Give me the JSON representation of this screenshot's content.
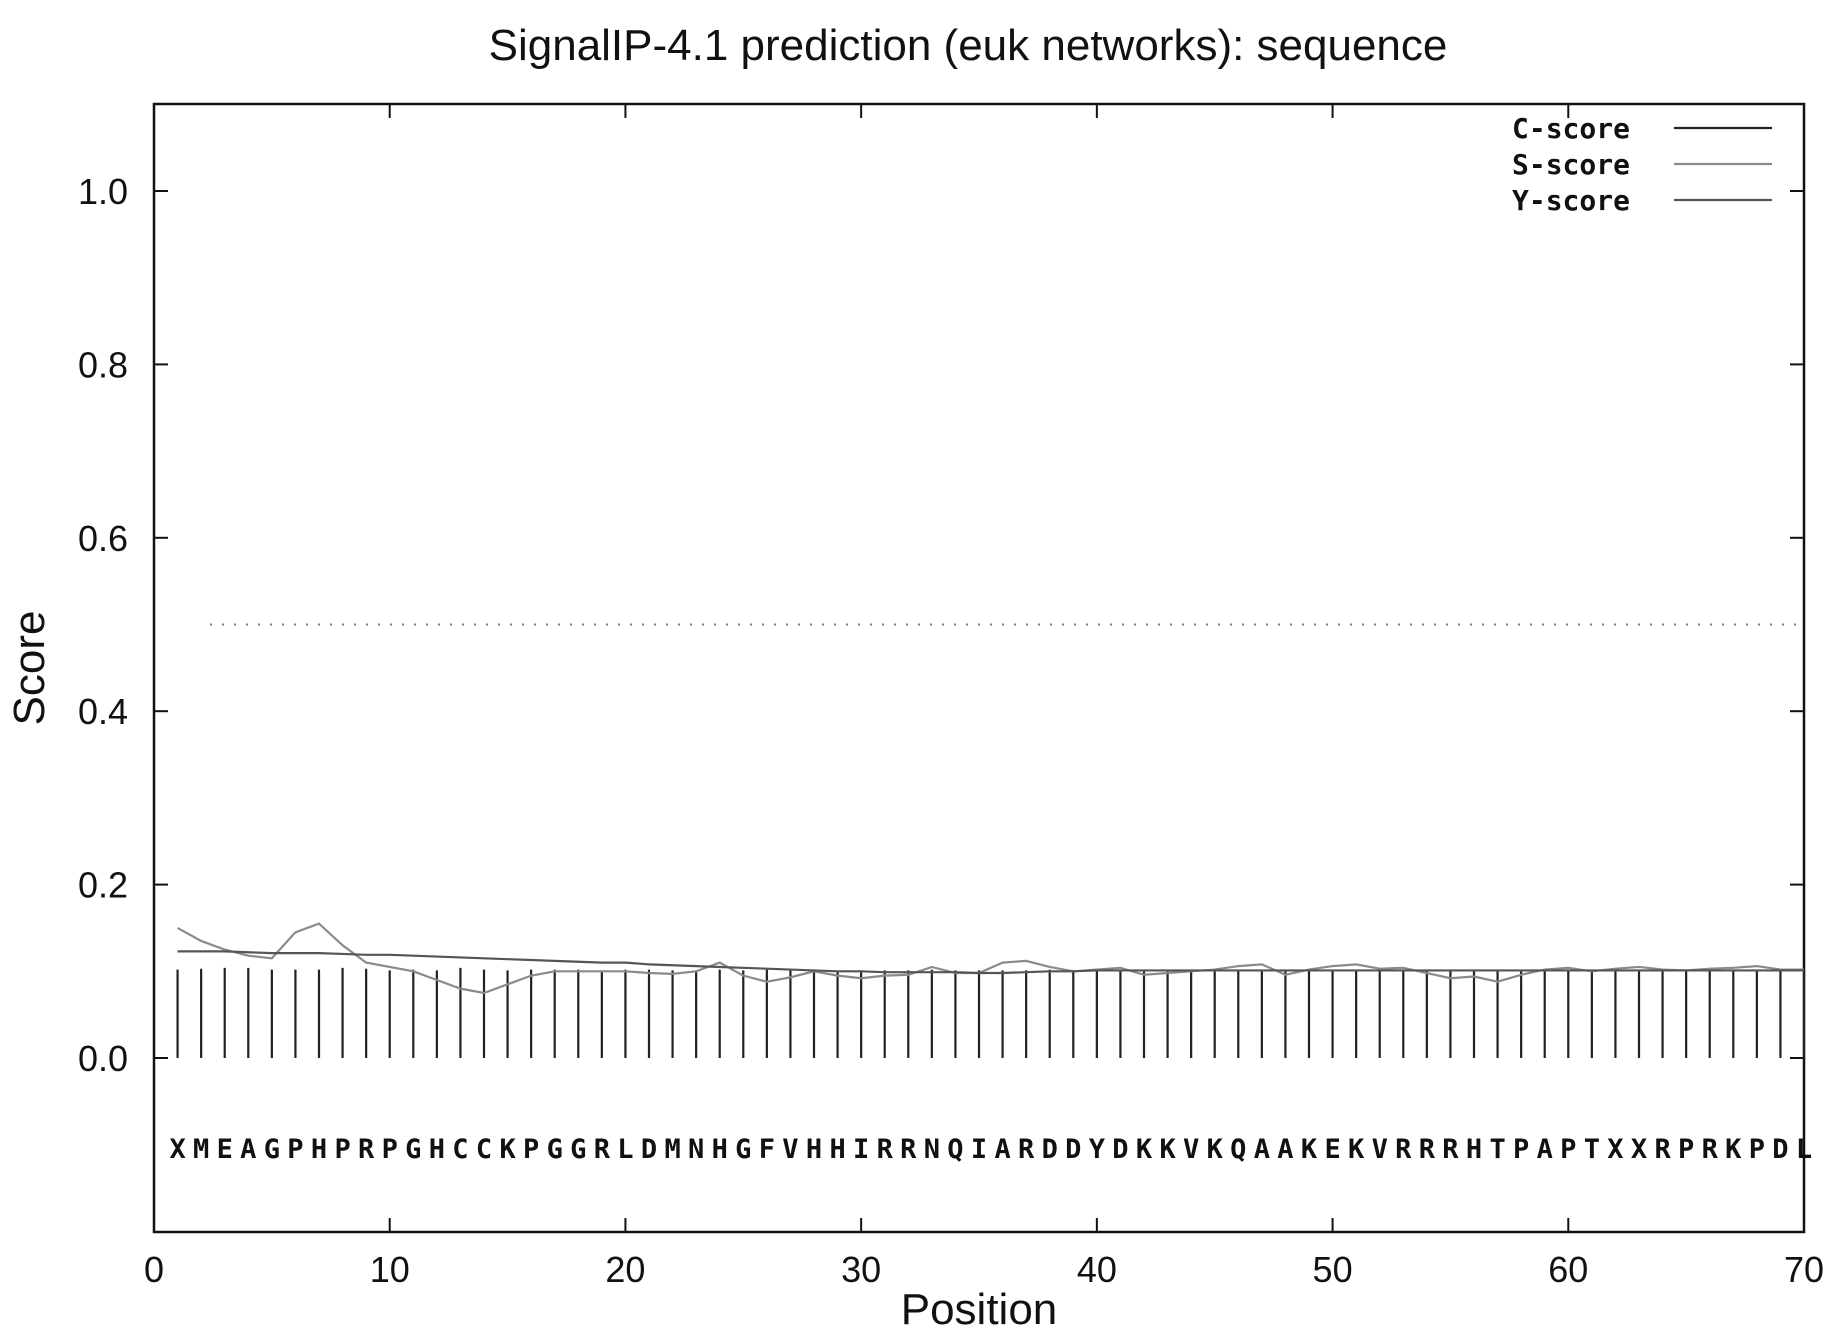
{
  "chart_data": {
    "type": "line",
    "title": "SignalIP-4.1 prediction (euk networks): sequence",
    "xlabel": "Position",
    "ylabel": "Score",
    "xlim": [
      0,
      70
    ],
    "ylim": [
      -0.2,
      1.1
    ],
    "x_ticks": [
      0,
      10,
      20,
      30,
      40,
      50,
      60,
      70
    ],
    "y_ticks": [
      0.0,
      0.2,
      0.4,
      0.6,
      0.8,
      1.0
    ],
    "x_tick_labels": [
      "0",
      "10",
      "20",
      "30",
      "40",
      "50",
      "60",
      "70"
    ],
    "y_tick_labels": [
      "0.0",
      "0.2",
      "0.4",
      "0.6",
      "0.8",
      "1.0"
    ],
    "threshold": 0.5,
    "legend_position": "top-right",
    "sequence": "XMEAGPHPRPGHCCKPGGRLDMNHGFVHHIRRNQIARDDYDKKVKQAAKEKVRRRHTPAPTXXRPRKPDL",
    "series": [
      {
        "name": "C-score",
        "style": "impulses",
        "color": "#222222",
        "values": [
          0.102,
          0.103,
          0.104,
          0.104,
          0.102,
          0.102,
          0.102,
          0.104,
          0.103,
          0.101,
          0.102,
          0.101,
          0.104,
          0.102,
          0.101,
          0.102,
          0.102,
          0.102,
          0.101,
          0.102,
          0.102,
          0.101,
          0.101,
          0.102,
          0.101,
          0.102,
          0.101,
          0.101,
          0.1,
          0.101,
          0.101,
          0.101,
          0.102,
          0.101,
          0.101,
          0.101,
          0.101,
          0.102,
          0.101,
          0.101,
          0.101,
          0.101,
          0.102,
          0.101,
          0.101,
          0.101,
          0.102,
          0.101,
          0.101,
          0.101,
          0.101,
          0.101,
          0.101,
          0.101,
          0.101,
          0.101,
          0.101,
          0.101,
          0.101,
          0.101,
          0.101,
          0.101,
          0.101,
          0.101,
          0.101,
          0.101,
          0.101,
          0.101,
          0.101,
          0.101
        ]
      },
      {
        "name": "S-score",
        "style": "line",
        "color": "#8a8a8a",
        "values": [
          0.15,
          0.135,
          0.125,
          0.118,
          0.115,
          0.145,
          0.155,
          0.13,
          0.11,
          0.105,
          0.1,
          0.09,
          0.08,
          0.075,
          0.085,
          0.095,
          0.1,
          0.1,
          0.1,
          0.1,
          0.098,
          0.097,
          0.1,
          0.11,
          0.095,
          0.088,
          0.093,
          0.1,
          0.095,
          0.092,
          0.095,
          0.096,
          0.105,
          0.098,
          0.098,
          0.11,
          0.112,
          0.105,
          0.1,
          0.102,
          0.104,
          0.096,
          0.098,
          0.1,
          0.102,
          0.106,
          0.108,
          0.096,
          0.102,
          0.106,
          0.108,
          0.103,
          0.104,
          0.098,
          0.092,
          0.094,
          0.088,
          0.096,
          0.102,
          0.104,
          0.1,
          0.103,
          0.105,
          0.102,
          0.101,
          0.103,
          0.104,
          0.106,
          0.102,
          0.102
        ]
      },
      {
        "name": "Y-score",
        "style": "line",
        "color": "#555555",
        "values": [
          0.123,
          0.123,
          0.123,
          0.122,
          0.121,
          0.121,
          0.121,
          0.12,
          0.119,
          0.119,
          0.118,
          0.117,
          0.116,
          0.115,
          0.114,
          0.113,
          0.112,
          0.111,
          0.11,
          0.11,
          0.108,
          0.107,
          0.106,
          0.105,
          0.104,
          0.103,
          0.102,
          0.101,
          0.1,
          0.1,
          0.099,
          0.099,
          0.099,
          0.099,
          0.098,
          0.098,
          0.099,
          0.1,
          0.1,
          0.101,
          0.101,
          0.101,
          0.101,
          0.101,
          0.101,
          0.101,
          0.101,
          0.101,
          0.101,
          0.101,
          0.101,
          0.101,
          0.101,
          0.101,
          0.101,
          0.101,
          0.101,
          0.101,
          0.101,
          0.101,
          0.101,
          0.101,
          0.101,
          0.101,
          0.101,
          0.101,
          0.101,
          0.101,
          0.101,
          0.101
        ]
      }
    ]
  }
}
